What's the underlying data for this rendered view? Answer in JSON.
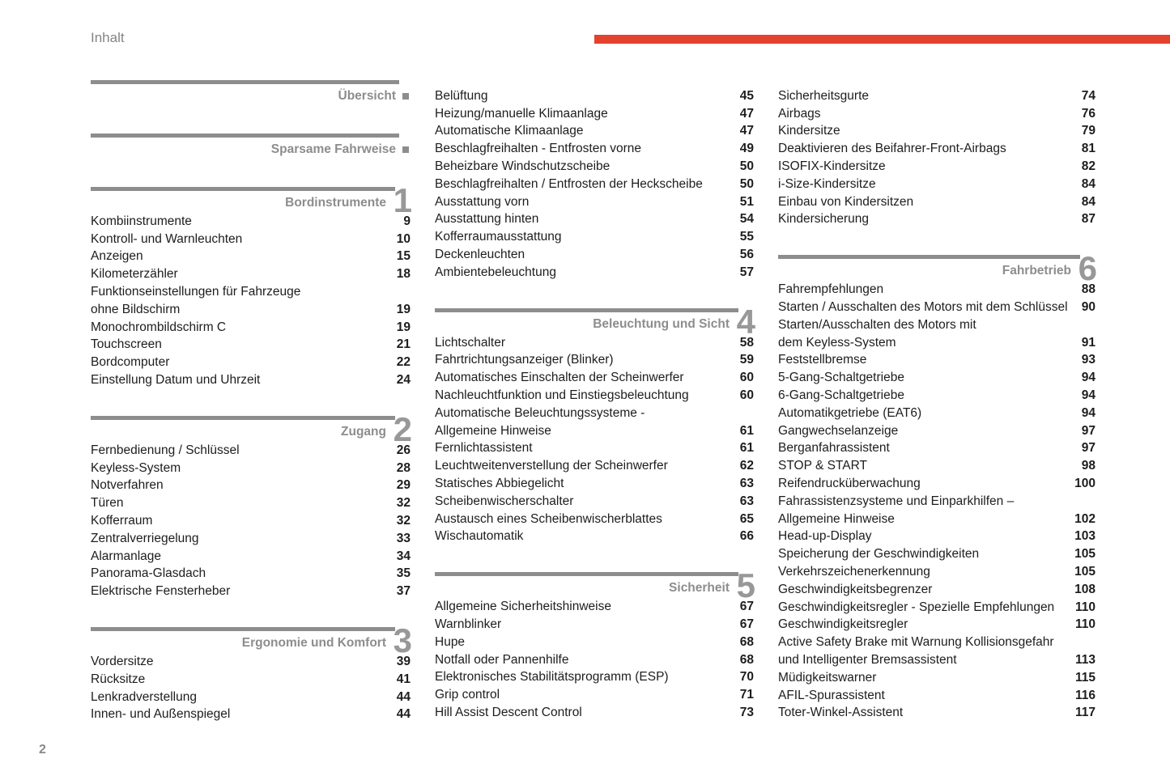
{
  "page": {
    "title": "Inhalt",
    "footer_page_number": "2"
  },
  "colors": {
    "accent_red": "#e3432e",
    "section_gray": "#8d8d8d",
    "text": "#1d1d1d"
  },
  "columns": [
    {
      "name": "column-1",
      "blocks": [
        {
          "type": "section",
          "slug": "uebersicht",
          "title": "Übersicht",
          "marker": "square"
        },
        {
          "type": "section",
          "slug": "sparsame-fahrweise",
          "title": "Sparsame Fahrweise",
          "marker": "square"
        },
        {
          "type": "section",
          "slug": "bordinstrumente",
          "title": "Bordinstrumente",
          "number": "1"
        },
        {
          "type": "entry",
          "label": "Kombiinstrumente",
          "page": "9"
        },
        {
          "type": "entry",
          "label": "Kontroll- und Warnleuchten",
          "page": "10"
        },
        {
          "type": "entry",
          "label": "Anzeigen",
          "page": "15"
        },
        {
          "type": "entry",
          "label": "Kilometerzähler",
          "page": "18"
        },
        {
          "type": "entry",
          "label": "Funktionseinstellungen für Fahrzeuge",
          "page": ""
        },
        {
          "type": "entry",
          "label": "ohne Bildschirm",
          "page": "19"
        },
        {
          "type": "entry",
          "label": "Monochrombildschirm C",
          "page": "19"
        },
        {
          "type": "entry",
          "label": "Touchscreen",
          "page": "21"
        },
        {
          "type": "entry",
          "label": "Bordcomputer",
          "page": "22"
        },
        {
          "type": "entry",
          "label": "Einstellung Datum und Uhrzeit",
          "page": "24"
        },
        {
          "type": "section",
          "slug": "zugang",
          "title": "Zugang",
          "number": "2"
        },
        {
          "type": "entry",
          "label": "Fernbedienung / Schlüssel",
          "page": "26"
        },
        {
          "type": "entry",
          "label": "Keyless-System",
          "page": "28"
        },
        {
          "type": "entry",
          "label": "Notverfahren",
          "page": "29"
        },
        {
          "type": "entry",
          "label": "Türen",
          "page": "32"
        },
        {
          "type": "entry",
          "label": "Kofferraum",
          "page": "32"
        },
        {
          "type": "entry",
          "label": "Zentralverriegelung",
          "page": "33"
        },
        {
          "type": "entry",
          "label": "Alarmanlage",
          "page": "34"
        },
        {
          "type": "entry",
          "label": "Panorama-Glasdach",
          "page": "35"
        },
        {
          "type": "entry",
          "label": "Elektrische Fensterheber",
          "page": "37"
        },
        {
          "type": "section",
          "slug": "ergonomie-und-komfort",
          "title": "Ergonomie und Komfort",
          "number": "3"
        },
        {
          "type": "entry",
          "label": "Vordersitze",
          "page": "39"
        },
        {
          "type": "entry",
          "label": "Rücksitze",
          "page": "41"
        },
        {
          "type": "entry",
          "label": "Lenkradverstellung",
          "page": "44"
        },
        {
          "type": "entry",
          "label": "Innen- und Außenspiegel",
          "page": "44"
        }
      ]
    },
    {
      "name": "column-2",
      "blocks": [
        {
          "type": "entry",
          "label": "Belüftung",
          "page": "45"
        },
        {
          "type": "entry",
          "label": "Heizung/manuelle Klimaanlage",
          "page": "47"
        },
        {
          "type": "entry",
          "label": "Automatische Klimaanlage",
          "page": "47"
        },
        {
          "type": "entry",
          "label": "Beschlagfreihalten - Entfrosten vorne",
          "page": "49"
        },
        {
          "type": "entry",
          "label": "Beheizbare Windschutzscheibe",
          "page": "50"
        },
        {
          "type": "entry",
          "label": "Beschlagfreihalten / Entfrosten der Heckscheibe",
          "page": "50"
        },
        {
          "type": "entry",
          "label": "Ausstattung vorn",
          "page": "51"
        },
        {
          "type": "entry",
          "label": "Ausstattung hinten",
          "page": "54"
        },
        {
          "type": "entry",
          "label": "Kofferraumausstattung",
          "page": "55"
        },
        {
          "type": "entry",
          "label": "Deckenleuchten",
          "page": "56"
        },
        {
          "type": "entry",
          "label": "Ambientebeleuchtung",
          "page": "57"
        },
        {
          "type": "section",
          "slug": "beleuchtung-und-sicht",
          "title": "Beleuchtung und Sicht",
          "number": "4"
        },
        {
          "type": "entry",
          "label": "Lichtschalter",
          "page": "58"
        },
        {
          "type": "entry",
          "label": "Fahrtrichtungsanzeiger (Blinker)",
          "page": "59"
        },
        {
          "type": "entry",
          "label": "Automatisches Einschalten der Scheinwerfer",
          "page": "60"
        },
        {
          "type": "entry",
          "label": "Nachleuchtfunktion und Einstiegsbeleuchtung",
          "page": "60"
        },
        {
          "type": "entry",
          "label": "Automatische Beleuchtungssysteme -",
          "page": ""
        },
        {
          "type": "entry",
          "label": "Allgemeine Hinweise",
          "page": "61"
        },
        {
          "type": "entry",
          "label": "Fernlichtassistent",
          "page": "61"
        },
        {
          "type": "entry",
          "label": "Leuchtweitenverstellung der Scheinwerfer",
          "page": "62"
        },
        {
          "type": "entry",
          "label": "Statisches Abbiegelicht",
          "page": "63"
        },
        {
          "type": "entry",
          "label": "Scheibenwischerschalter",
          "page": "63"
        },
        {
          "type": "entry",
          "label": "Austausch eines Scheibenwischerblattes",
          "page": "65"
        },
        {
          "type": "entry",
          "label": "Wischautomatik",
          "page": "66"
        },
        {
          "type": "section",
          "slug": "sicherheit",
          "title": "Sicherheit",
          "number": "5"
        },
        {
          "type": "entry",
          "label": "Allgemeine Sicherheitshinweise",
          "page": "67"
        },
        {
          "type": "entry",
          "label": "Warnblinker",
          "page": "67"
        },
        {
          "type": "entry",
          "label": "Hupe",
          "page": "68"
        },
        {
          "type": "entry",
          "label": "Notfall oder Pannenhilfe",
          "page": "68"
        },
        {
          "type": "entry",
          "label": "Elektronisches Stabilitätsprogramm (ESP)",
          "page": "70"
        },
        {
          "type": "entry",
          "label": "Grip control",
          "page": "71"
        },
        {
          "type": "entry",
          "label": "Hill Assist Descent Control",
          "page": "73"
        }
      ]
    },
    {
      "name": "column-3",
      "blocks": [
        {
          "type": "entry",
          "label": "Sicherheitsgurte",
          "page": "74"
        },
        {
          "type": "entry",
          "label": "Airbags",
          "page": "76"
        },
        {
          "type": "entry",
          "label": "Kindersitze",
          "page": "79"
        },
        {
          "type": "entry",
          "label": "Deaktivieren des Beifahrer-Front-Airbags",
          "page": "81"
        },
        {
          "type": "entry",
          "label": "ISOFIX-Kindersitze",
          "page": "82"
        },
        {
          "type": "entry",
          "label": "i-Size-Kindersitze",
          "page": "84"
        },
        {
          "type": "entry",
          "label": "Einbau von Kindersitzen",
          "page": "84"
        },
        {
          "type": "entry",
          "label": "Kindersicherung",
          "page": "87"
        },
        {
          "type": "section",
          "slug": "fahrbetrieb",
          "title": "Fahrbetrieb",
          "number": "6"
        },
        {
          "type": "entry",
          "label": "Fahrempfehlungen",
          "page": "88"
        },
        {
          "type": "entry",
          "label": "Starten / Ausschalten des Motors mit dem Schlüssel",
          "page": "90"
        },
        {
          "type": "entry",
          "label": "Starten/Ausschalten des Motors mit",
          "page": ""
        },
        {
          "type": "entry",
          "label": "dem Keyless-System",
          "page": "91"
        },
        {
          "type": "entry",
          "label": "Feststellbremse",
          "page": "93"
        },
        {
          "type": "entry",
          "label": "5-Gang-Schaltgetriebe",
          "page": "94"
        },
        {
          "type": "entry",
          "label": "6-Gang-Schaltgetriebe",
          "page": "94"
        },
        {
          "type": "entry",
          "label": "Automatikgetriebe (EAT6)",
          "page": "94"
        },
        {
          "type": "entry",
          "label": "Gangwechselanzeige",
          "page": "97"
        },
        {
          "type": "entry",
          "label": "Berganfahrassistent",
          "page": "97"
        },
        {
          "type": "entry",
          "label": "STOP & START",
          "page": "98"
        },
        {
          "type": "entry",
          "label": "Reifendrucküberwachung",
          "page": "100"
        },
        {
          "type": "entry",
          "label": "Fahrassistenzsysteme und Einparkhilfen –",
          "page": ""
        },
        {
          "type": "entry",
          "label": "Allgemeine Hinweise",
          "page": "102"
        },
        {
          "type": "entry",
          "label": "Head-up-Display",
          "page": "103"
        },
        {
          "type": "entry",
          "label": "Speicherung der Geschwindigkeiten",
          "page": "105"
        },
        {
          "type": "entry",
          "label": "Verkehrszeichenerkennung",
          "page": "105"
        },
        {
          "type": "entry",
          "label": "Geschwindigkeitsbegrenzer",
          "page": "108"
        },
        {
          "type": "entry",
          "label": "Geschwindigkeitsregler - Spezielle Empfehlungen",
          "page": "110"
        },
        {
          "type": "entry",
          "label": "Geschwindigkeitsregler",
          "page": "110"
        },
        {
          "type": "entry",
          "label": "Active Safety Brake mit Warnung Kollisionsgefahr",
          "page": ""
        },
        {
          "type": "entry",
          "label": "und Intelligenter Bremsassistent",
          "page": "113"
        },
        {
          "type": "entry",
          "label": "Müdigkeitswarner",
          "page": "115"
        },
        {
          "type": "entry",
          "label": "AFIL-Spurassistent",
          "page": "116"
        },
        {
          "type": "entry",
          "label": "Toter-Winkel-Assistent",
          "page": "117"
        }
      ]
    }
  ]
}
